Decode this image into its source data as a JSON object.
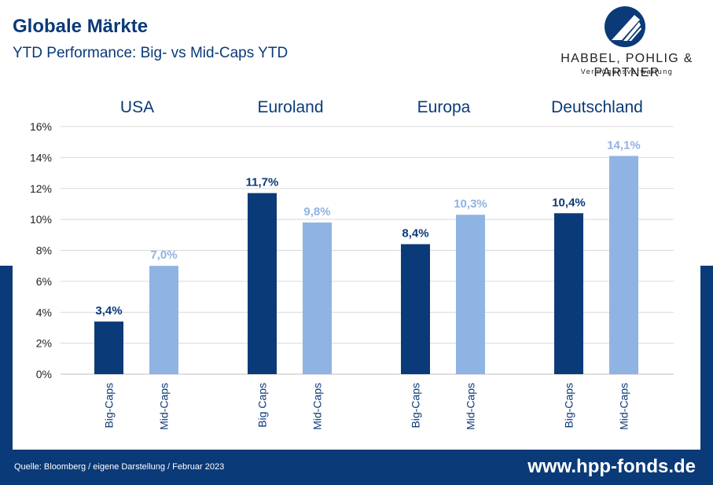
{
  "header": {
    "title": "Globale Märkte",
    "subtitle": "YTD Performance: Big- vs Mid-Caps YTD"
  },
  "logo": {
    "name": "HABBEL, POHLIG & PARTNER",
    "tagline": "Vermögensverwaltung"
  },
  "footer": {
    "source": "Quelle: Bloomberg / eigene Darstellung / Februar 2023",
    "website": "www.hpp-fonds.de"
  },
  "colors": {
    "brand": "#0b3a78",
    "big_caps": "#0b3a78",
    "mid_caps": "#8fb3e3"
  },
  "chart_data": {
    "type": "bar",
    "groups": [
      "USA",
      "Euroland",
      "Europa",
      "Deutschland"
    ],
    "y_ticks": [
      "0%",
      "2%",
      "4%",
      "6%",
      "8%",
      "10%",
      "12%",
      "14%",
      "16%"
    ],
    "ylim": [
      0,
      16
    ],
    "grid": true,
    "bars": [
      {
        "group": "USA",
        "category": "Big-Caps",
        "value": 3.4,
        "label": "3,4%",
        "series": "big"
      },
      {
        "group": "USA",
        "category": "Mid-Caps",
        "value": 7.0,
        "label": "7,0%",
        "series": "mid"
      },
      {
        "group": "Euroland",
        "category": "Big Caps",
        "value": 11.7,
        "label": "11,7%",
        "series": "big"
      },
      {
        "group": "Euroland",
        "category": "Mid-Caps",
        "value": 9.8,
        "label": "9,8%",
        "series": "mid"
      },
      {
        "group": "Europa",
        "category": "Big-Caps",
        "value": 8.4,
        "label": "8,4%",
        "series": "big"
      },
      {
        "group": "Europa",
        "category": "Mid-Caps",
        "value": 10.3,
        "label": "10,3%",
        "series": "mid"
      },
      {
        "group": "Deutschland",
        "category": "Big-Caps",
        "value": 10.4,
        "label": "10,4%",
        "series": "big"
      },
      {
        "group": "Deutschland",
        "category": "Mid-Caps",
        "value": 14.1,
        "label": "14,1%",
        "series": "mid"
      }
    ]
  }
}
